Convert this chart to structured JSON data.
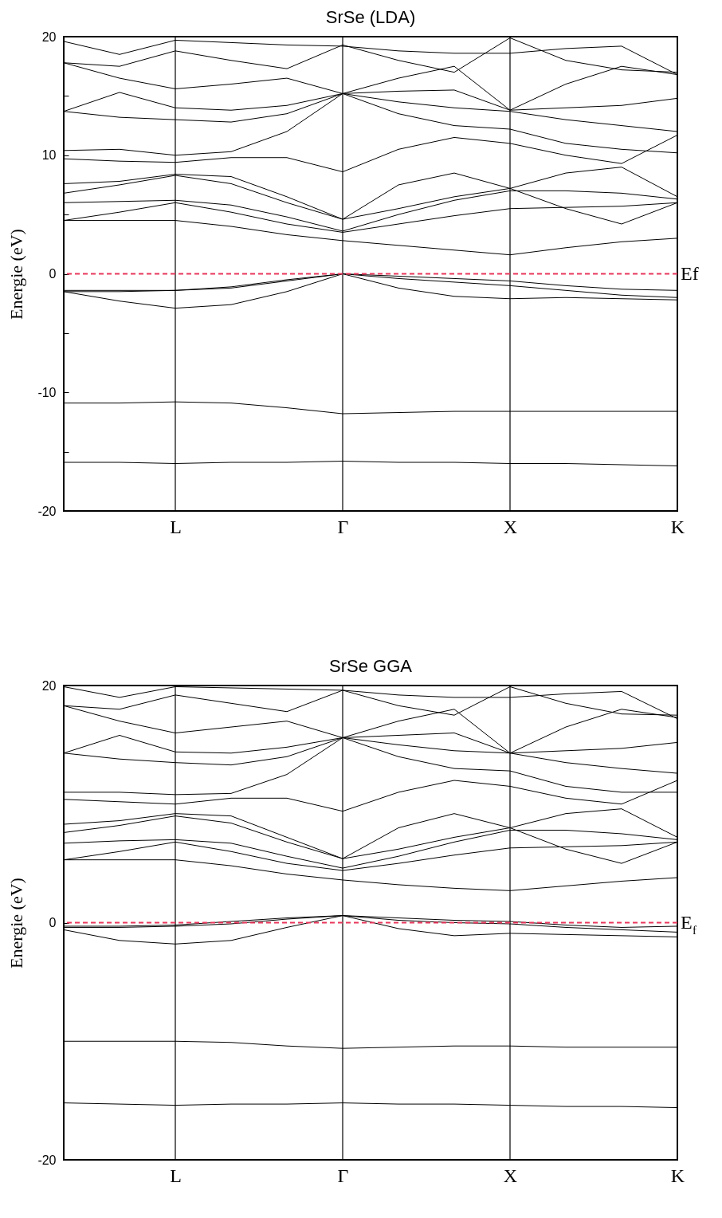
{
  "chart_data": [
    {
      "type": "line",
      "title": "SrSe (LDA)",
      "ylabel": "Energie (eV)",
      "categories": [
        null,
        null,
        "L",
        null,
        null,
        "Γ",
        null,
        null,
        "X",
        null,
        null,
        "K"
      ],
      "ylim": [
        -20,
        20
      ],
      "yticks": [
        -20,
        {
          "value": -15,
          "label": null
        },
        -10,
        {
          "value": -5,
          "label": null
        },
        0,
        {
          "value": 5,
          "label": null
        },
        10,
        {
          "value": 15,
          "label": null
        },
        20
      ],
      "ref_lines": [
        {
          "axis": "x",
          "value": "L",
          "color": "#000000",
          "line_style": "solid"
        },
        {
          "axis": "x",
          "value": "Γ",
          "color": "#000000",
          "line_style": "solid"
        },
        {
          "axis": "x",
          "value": "X",
          "color": "#000000",
          "line_style": "solid"
        },
        {
          "axis": "y",
          "value": 0,
          "label": "Ef",
          "color": "#e8365a",
          "line_style": "dashed"
        }
      ],
      "series": [
        {
          "color": "#000000",
          "values": [
            -15.9,
            -15.9,
            -16,
            -15.9,
            -15.9,
            -15.8,
            -15.9,
            -15.9,
            -16,
            -16,
            -16.1,
            -16.2
          ]
        },
        {
          "color": "#000000",
          "values": [
            -10.9,
            -10.9,
            -10.8,
            -10.9,
            -11.3,
            -11.8,
            -11.7,
            -11.6,
            -11.6,
            -11.6,
            -11.6,
            -11.6
          ]
        },
        {
          "color": "#000000",
          "values": [
            -1.5,
            -2.3,
            -2.9,
            -2.6,
            -1.5,
            0,
            -1.2,
            -1.9,
            -2.1,
            -2,
            -2.1,
            -2.2
          ]
        },
        {
          "color": "#000000",
          "values": [
            -1.5,
            -1.5,
            -1.4,
            -1.2,
            -0.6,
            0,
            -0.4,
            -0.7,
            -1,
            -1.4,
            -1.8,
            -2
          ]
        },
        {
          "color": "#000000",
          "values": [
            -1.4,
            -1.4,
            -1.4,
            -1.1,
            -0.5,
            0,
            -0.2,
            -0.4,
            -0.6,
            -1,
            -1.3,
            -1.4
          ]
        },
        {
          "color": "#000000",
          "values": [
            4.5,
            4.5,
            4.5,
            4,
            3.3,
            2.8,
            2.4,
            2,
            1.6,
            2.2,
            2.7,
            3
          ]
        },
        {
          "color": "#000000",
          "values": [
            4.5,
            5.2,
            6,
            5.2,
            4.2,
            3.5,
            4.2,
            4.9,
            5.5,
            5.6,
            5.7,
            6
          ]
        },
        {
          "color": "#000000",
          "values": [
            6,
            6.1,
            6.2,
            5.8,
            4.8,
            3.6,
            5,
            6.2,
            7,
            7,
            6.8,
            6.3
          ]
        },
        {
          "color": "#000000",
          "values": [
            6.8,
            7.5,
            8.3,
            7.6,
            6,
            4.6,
            5.5,
            6.5,
            7.2,
            8.5,
            9,
            6.5
          ]
        },
        {
          "color": "#000000",
          "values": [
            7.6,
            7.8,
            8.4,
            8.2,
            6.5,
            4.6,
            7.5,
            8.5,
            7.2,
            5.5,
            4.2,
            6
          ]
        },
        {
          "color": "#000000",
          "values": [
            9.7,
            9.5,
            9.4,
            9.8,
            9.8,
            8.6,
            10.5,
            11.5,
            11,
            10,
            9.3,
            11.7
          ]
        },
        {
          "color": "#000000",
          "values": [
            10.4,
            10.5,
            10,
            10.3,
            12,
            15.2,
            13.5,
            12.5,
            12.2,
            11,
            10.5,
            10.2
          ]
        },
        {
          "color": "#000000",
          "values": [
            13.7,
            13.2,
            13,
            12.8,
            13.5,
            15.2,
            14.5,
            14,
            13.7,
            13,
            12.5,
            12
          ]
        },
        {
          "color": "#000000",
          "values": [
            13.7,
            15.3,
            14,
            13.8,
            14.2,
            15.2,
            15.4,
            15.5,
            13.8,
            14,
            14.2,
            14.8
          ]
        },
        {
          "color": "#000000",
          "values": [
            17.8,
            16.5,
            15.6,
            16,
            16.5,
            15.2,
            16.5,
            17.5,
            13.8,
            16,
            17.5,
            16.8
          ]
        },
        {
          "color": "#000000",
          "values": [
            17.8,
            17.5,
            18.8,
            18,
            17.3,
            19.3,
            18,
            17,
            19.9,
            18,
            17.2,
            17
          ]
        },
        {
          "color": "#000000",
          "values": [
            19.6,
            18.5,
            19.7,
            19.5,
            19.3,
            19.2,
            18.8,
            18.6,
            18.6,
            19,
            19.2,
            16.8
          ]
        }
      ]
    },
    {
      "type": "line",
      "title": "SrSe GGA",
      "ylabel": "Energie (eV)",
      "categories": [
        null,
        null,
        "L",
        null,
        null,
        "Γ",
        null,
        null,
        "X",
        null,
        null,
        "K"
      ],
      "ylim": [
        -20,
        20
      ],
      "yticks": [
        -20,
        0,
        20
      ],
      "ref_lines": [
        {
          "axis": "x",
          "value": "L",
          "color": "#000000",
          "line_style": "solid"
        },
        {
          "axis": "x",
          "value": "Γ",
          "color": "#000000",
          "line_style": "solid"
        },
        {
          "axis": "x",
          "value": "X",
          "color": "#000000",
          "line_style": "solid"
        },
        {
          "axis": "y",
          "value": 0,
          "label": "E$_{f}$",
          "color": "#e8365a",
          "line_style": "dashed"
        }
      ],
      "series": [
        {
          "color": "#000000",
          "values": [
            -15.2,
            -15.3,
            -15.4,
            -15.3,
            -15.3,
            -15.2,
            -15.3,
            -15.3,
            -15.4,
            -15.5,
            -15.5,
            -15.6
          ]
        },
        {
          "color": "#000000",
          "values": [
            -10,
            -10,
            -10,
            -10.1,
            -10.4,
            -10.6,
            -10.5,
            -10.4,
            -10.4,
            -10.5,
            -10.5,
            -10.5
          ]
        },
        {
          "color": "#000000",
          "values": [
            -0.6,
            -1.5,
            -1.8,
            -1.5,
            -0.4,
            0.6,
            -0.5,
            -1.1,
            -0.9,
            -1,
            -1.1,
            -1.2
          ]
        },
        {
          "color": "#000000",
          "values": [
            -0.4,
            -0.4,
            -0.3,
            -0.1,
            0.3,
            0.6,
            0.2,
            0,
            -0.1,
            -0.4,
            -0.6,
            -0.8
          ]
        },
        {
          "color": "#000000",
          "values": [
            -0.3,
            -0.3,
            -0.2,
            0.1,
            0.4,
            0.6,
            0.4,
            0.2,
            0.1,
            -0.2,
            -0.4,
            -0.3
          ]
        },
        {
          "color": "#000000",
          "values": [
            5.3,
            5.3,
            5.3,
            4.8,
            4.1,
            3.6,
            3.2,
            2.9,
            2.7,
            3.1,
            3.5,
            3.8
          ]
        },
        {
          "color": "#000000",
          "values": [
            5.3,
            6,
            6.8,
            6,
            5,
            4.4,
            5,
            5.7,
            6.3,
            6.4,
            6.5,
            6.8
          ]
        },
        {
          "color": "#000000",
          "values": [
            6.7,
            6.9,
            7,
            6.7,
            5.6,
            4.6,
            5.6,
            6.8,
            7.8,
            7.8,
            7.5,
            7
          ]
        },
        {
          "color": "#000000",
          "values": [
            7.6,
            8.2,
            9,
            8.4,
            6.8,
            5.4,
            6.2,
            7.2,
            8,
            9.2,
            9.6,
            7.2
          ]
        },
        {
          "color": "#000000",
          "values": [
            8.3,
            8.6,
            9.2,
            9,
            7.2,
            5.4,
            8,
            9.2,
            8,
            6.2,
            5,
            6.8
          ]
        },
        {
          "color": "#000000",
          "values": [
            10.4,
            10.2,
            10,
            10.5,
            10.5,
            9.4,
            11,
            12,
            11.5,
            10.5,
            10,
            12
          ]
        },
        {
          "color": "#000000",
          "values": [
            11,
            11,
            10.8,
            10.9,
            12.5,
            15.6,
            14,
            13,
            12.8,
            11.5,
            11,
            11
          ]
        },
        {
          "color": "#000000",
          "values": [
            14.3,
            13.8,
            13.5,
            13.3,
            14,
            15.6,
            15,
            14.5,
            14.3,
            13.5,
            13,
            12.6
          ]
        },
        {
          "color": "#000000",
          "values": [
            14.3,
            15.8,
            14.4,
            14.3,
            14.8,
            15.6,
            15.8,
            16,
            14.3,
            14.5,
            14.7,
            15.2
          ]
        },
        {
          "color": "#000000",
          "values": [
            18.3,
            17,
            16,
            16.5,
            17,
            15.6,
            17,
            18,
            14.3,
            16.5,
            18,
            17.3
          ]
        },
        {
          "color": "#000000",
          "values": [
            18.3,
            18,
            19.2,
            18.5,
            17.8,
            19.6,
            18.3,
            17.5,
            19.9,
            18.5,
            17.6,
            17.5
          ]
        },
        {
          "color": "#000000",
          "values": [
            19.9,
            19,
            19.9,
            19.8,
            19.7,
            19.6,
            19.2,
            19,
            19,
            19.3,
            19.5,
            17.2
          ]
        }
      ]
    }
  ]
}
